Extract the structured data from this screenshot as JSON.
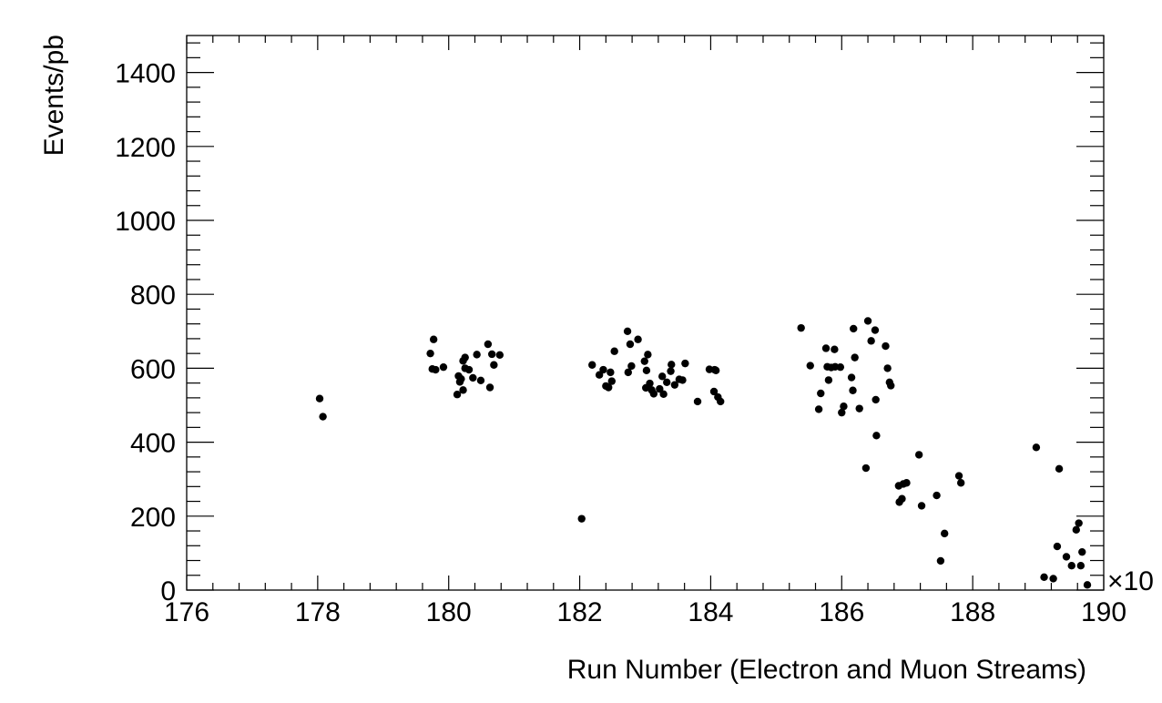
{
  "chart_data": {
    "type": "scatter",
    "xlabel": "Run Number (Electron and Muon Streams)",
    "ylabel": "Events/pb",
    "x_multiplier_label": "×10",
    "xlim": [
      176,
      190
    ],
    "ylim": [
      0,
      1500
    ],
    "x_ticks": [
      176,
      178,
      180,
      182,
      184,
      186,
      188,
      190
    ],
    "y_ticks": [
      0,
      200,
      400,
      600,
      800,
      1000,
      1200,
      1400
    ],
    "grid": false,
    "marker_color": "#000000",
    "points": [
      [
        178.03,
        518
      ],
      [
        178.08,
        469
      ],
      [
        179.72,
        640
      ],
      [
        179.75,
        598
      ],
      [
        179.77,
        678
      ],
      [
        179.8,
        596
      ],
      [
        179.92,
        603
      ],
      [
        180.13,
        529
      ],
      [
        180.15,
        579
      ],
      [
        180.17,
        563
      ],
      [
        180.19,
        571
      ],
      [
        180.22,
        541
      ],
      [
        180.22,
        620
      ],
      [
        180.25,
        600
      ],
      [
        180.25,
        629
      ],
      [
        180.31,
        596
      ],
      [
        180.37,
        574
      ],
      [
        180.43,
        637
      ],
      [
        180.49,
        567
      ],
      [
        180.6,
        665
      ],
      [
        180.63,
        548
      ],
      [
        180.66,
        638
      ],
      [
        180.69,
        609
      ],
      [
        180.78,
        636
      ],
      [
        182.03,
        193
      ],
      [
        182.19,
        609
      ],
      [
        182.3,
        582
      ],
      [
        182.36,
        596
      ],
      [
        182.4,
        552
      ],
      [
        182.44,
        548
      ],
      [
        182.47,
        589
      ],
      [
        182.49,
        565
      ],
      [
        182.53,
        646
      ],
      [
        182.73,
        700
      ],
      [
        182.74,
        589
      ],
      [
        182.77,
        665
      ],
      [
        182.79,
        606
      ],
      [
        182.89,
        678
      ],
      [
        182.99,
        619
      ],
      [
        183.01,
        547
      ],
      [
        183.02,
        594
      ],
      [
        183.04,
        637
      ],
      [
        183.07,
        559
      ],
      [
        183.1,
        541
      ],
      [
        183.13,
        531
      ],
      [
        183.22,
        544
      ],
      [
        183.26,
        578
      ],
      [
        183.28,
        530
      ],
      [
        183.33,
        562
      ],
      [
        183.39,
        592
      ],
      [
        183.4,
        610
      ],
      [
        183.45,
        555
      ],
      [
        183.52,
        570
      ],
      [
        183.57,
        568
      ],
      [
        183.61,
        613
      ],
      [
        183.8,
        510
      ],
      [
        183.98,
        597
      ],
      [
        184.05,
        537
      ],
      [
        184.06,
        596
      ],
      [
        184.08,
        594
      ],
      [
        184.11,
        522
      ],
      [
        184.15,
        510
      ],
      [
        185.38,
        709
      ],
      [
        185.52,
        607
      ],
      [
        185.65,
        489
      ],
      [
        185.68,
        532
      ],
      [
        185.76,
        654
      ],
      [
        185.78,
        604
      ],
      [
        185.8,
        568
      ],
      [
        185.84,
        602
      ],
      [
        185.89,
        651
      ],
      [
        185.9,
        604
      ],
      [
        185.98,
        603
      ],
      [
        186.0,
        480
      ],
      [
        186.03,
        497
      ],
      [
        186.15,
        575
      ],
      [
        186.17,
        540
      ],
      [
        186.18,
        707
      ],
      [
        186.2,
        629
      ],
      [
        186.27,
        491
      ],
      [
        186.37,
        330
      ],
      [
        186.4,
        728
      ],
      [
        186.45,
        674
      ],
      [
        186.51,
        703
      ],
      [
        186.52,
        515
      ],
      [
        186.53,
        418
      ],
      [
        186.67,
        660
      ],
      [
        186.7,
        600
      ],
      [
        186.73,
        562
      ],
      [
        186.75,
        553
      ],
      [
        186.87,
        282
      ],
      [
        186.88,
        238
      ],
      [
        186.92,
        247
      ],
      [
        186.94,
        287
      ],
      [
        186.99,
        290
      ],
      [
        187.18,
        366
      ],
      [
        187.22,
        228
      ],
      [
        187.45,
        256
      ],
      [
        187.51,
        79
      ],
      [
        187.57,
        153
      ],
      [
        187.79,
        309
      ],
      [
        187.82,
        290
      ],
      [
        188.97,
        386
      ],
      [
        189.09,
        35
      ],
      [
        189.23,
        31
      ],
      [
        189.29,
        118
      ],
      [
        189.32,
        328
      ],
      [
        189.43,
        90
      ],
      [
        189.51,
        66
      ],
      [
        189.58,
        163
      ],
      [
        189.62,
        181
      ],
      [
        189.65,
        66
      ],
      [
        189.67,
        103
      ],
      [
        189.75,
        14
      ]
    ]
  }
}
